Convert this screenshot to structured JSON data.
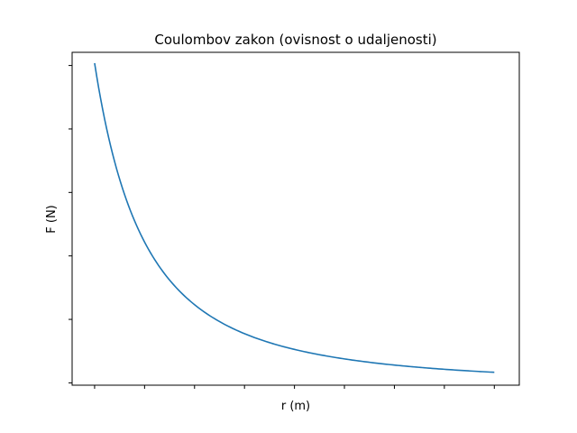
{
  "chart_data": {
    "type": "line",
    "title": "Coulombov zakon (ovisnost o udaljenosti)",
    "xlabel": "r (m)",
    "ylabel": "F (N)",
    "x_tick_labels_visible": false,
    "y_tick_labels_visible": false,
    "x_tick_count": 9,
    "y_tick_count": 6,
    "grid": false,
    "legend": "none",
    "relationship": "F ∝ 1/r²",
    "xlim": [
      0.155,
      1.05
    ],
    "ylim": [
      0.0,
      43.0
    ],
    "series": [
      {
        "color": "#1f77b4",
        "x": [
          0.2,
          0.225,
          0.25,
          0.275,
          0.3,
          0.325,
          0.35,
          0.375,
          0.4,
          0.45,
          0.5,
          0.55,
          0.6,
          0.65,
          0.7,
          0.75,
          0.8,
          0.85,
          0.9,
          0.95,
          1.0
        ],
        "y": [
          41.6,
          32.87,
          26.62,
          22.0,
          18.49,
          15.75,
          13.58,
          11.83,
          10.4,
          8.22,
          6.66,
          5.5,
          4.62,
          3.94,
          3.4,
          2.96,
          2.6,
          2.3,
          2.05,
          1.84,
          1.66
        ]
      }
    ]
  }
}
